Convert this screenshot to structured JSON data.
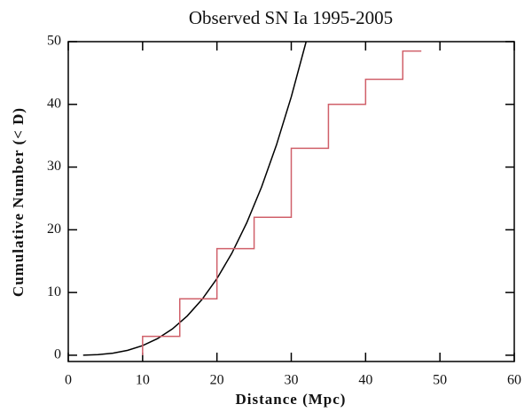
{
  "chart_data": {
    "type": "line",
    "title": "Observed SN Ia  1995-2005",
    "x_label": "Distance (Mpc)",
    "y_label": "Cumulative Number (< D)",
    "xlim": [
      0,
      60
    ],
    "xticks": [
      0,
      10,
      20,
      30,
      40,
      50,
      60
    ],
    "ylim": [
      -1,
      50
    ],
    "yticks": [
      0,
      10,
      20,
      30,
      40,
      50
    ],
    "series": [
      {
        "color": "#000000",
        "x": [
          2,
          4,
          6,
          8,
          10,
          12,
          14,
          16,
          18,
          20,
          22,
          24,
          26,
          28,
          30,
          32
        ],
        "values": [
          0.01,
          0.1,
          0.33,
          0.78,
          1.53,
          2.64,
          4.19,
          6.25,
          8.9,
          12.21,
          16.25,
          21.09,
          26.81,
          33.5,
          41.2,
          50
        ]
      },
      {
        "color": "#d0606a",
        "x": [
          10,
          10,
          15,
          15,
          20,
          20,
          25,
          25,
          30,
          30,
          35,
          35,
          40,
          40,
          45,
          45,
          47.5
        ],
        "values": [
          0,
          3,
          3,
          9,
          9,
          17,
          17,
          22,
          22,
          33,
          33,
          40,
          40,
          44,
          44,
          48.5,
          48.5
        ]
      }
    ]
  }
}
